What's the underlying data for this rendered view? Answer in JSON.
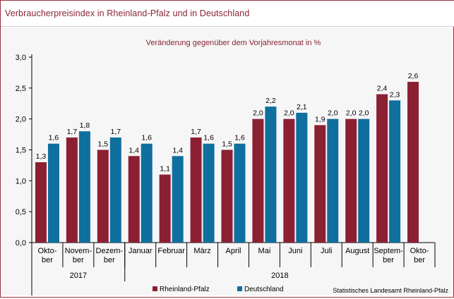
{
  "header": {
    "title": "Verbraucherpreisindex in Rheinland-Pfalz und in Deutschland"
  },
  "chart_data": {
    "type": "bar",
    "title": "Veränderung gegenüber dem Vorjahresmonat in %",
    "categories": [
      "Okto-\nber",
      "Novem-\nber",
      "Dezem-\nber",
      "Januar",
      "Februar",
      "März",
      "April",
      "Mai",
      "Juni",
      "Juli",
      "August",
      "Septem-\nber",
      "Okto-\nber"
    ],
    "year_groups": [
      {
        "label": "2017",
        "count": 3
      },
      {
        "label": "2018",
        "count": 10
      }
    ],
    "series": [
      {
        "name": "Rheinland-Pfalz",
        "color": "#8b2033",
        "values": [
          1.3,
          1.7,
          1.5,
          1.4,
          1.1,
          1.7,
          1.5,
          2.0,
          2.0,
          1.9,
          2.0,
          2.4,
          2.6
        ]
      },
      {
        "name": "Deutschland",
        "color": "#0f6f9e",
        "values": [
          1.6,
          1.8,
          1.7,
          1.6,
          1.4,
          1.6,
          1.6,
          2.2,
          2.1,
          2.0,
          2.0,
          2.3,
          null
        ]
      }
    ],
    "value_labels": [
      [
        "1,3",
        "1,7",
        "1,5",
        "1,4",
        "1,1",
        "1,7",
        "1,5",
        "2,0",
        "2,0",
        "1,9",
        "2,0",
        "2,4",
        "2,6"
      ],
      [
        "1,6",
        "1,8",
        "1,7",
        "1,6",
        "1,4",
        "1,6",
        "1,6",
        "2,2",
        "2,1",
        "2,0",
        "2,0",
        "2,3",
        ""
      ]
    ],
    "yticks": [
      "0,0",
      "0,5",
      "1,0",
      "1,5",
      "2,0",
      "2,5",
      "3,0"
    ],
    "ylim": [
      0,
      3.0
    ],
    "legend_position": "bottom-center",
    "grid": false
  },
  "footer": {
    "source": "Statistisches Landesamt Rheinland-Pfalz"
  }
}
